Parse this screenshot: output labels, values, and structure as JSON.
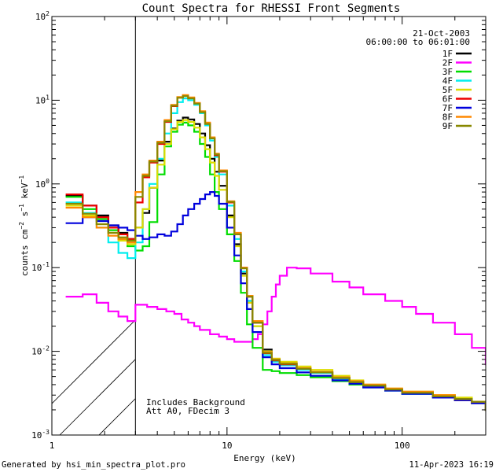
{
  "chart_data": {
    "type": "line",
    "title": "Count Spectra for RHESSI Front Segments",
    "xlabel": "Energy (keV)",
    "ylabel": "counts cm^-2 s^-1 keV^-1",
    "ylabel_parts": {
      "base": "counts cm",
      "exp1": "−2",
      "mid": " s",
      "exp2": "−1",
      "mid2": " keV",
      "exp3": "−1"
    },
    "xscale": "log",
    "yscale": "log",
    "xlim": [
      1,
      300
    ],
    "ylim": [
      0.001,
      100
    ],
    "x_ticks": [
      {
        "value": 1,
        "label": "1"
      },
      {
        "value": 10,
        "label": "10"
      },
      {
        "value": 100,
        "label": "100"
      }
    ],
    "y_ticks": [
      {
        "value": 0.001,
        "base": "10",
        "exp": "-3"
      },
      {
        "value": 0.01,
        "base": "10",
        "exp": "-2"
      },
      {
        "value": 0.1,
        "base": "10",
        "exp": "-1"
      },
      {
        "value": 1,
        "base": "10",
        "exp": "0"
      },
      {
        "value": 10,
        "base": "10",
        "exp": "1"
      },
      {
        "value": 100,
        "base": "10",
        "exp": "2"
      }
    ],
    "date": "21-Oct-2003",
    "time_range": "06:00:00 to 06:01:00",
    "hatched_region_kev": [
      1,
      3
    ],
    "annotations": [
      "Includes Background",
      "Att A0, FDecim 3"
    ],
    "legend_position": "top-right",
    "series": [
      {
        "name": "1F",
        "color": "#000000",
        "x": [
          1.2,
          1.5,
          1.8,
          2.1,
          2.4,
          2.7,
          3.0,
          3.3,
          3.6,
          4.0,
          4.4,
          4.8,
          5.2,
          5.6,
          6.0,
          6.5,
          7.0,
          7.5,
          8.0,
          8.5,
          9.0,
          10,
          11,
          12,
          13,
          14,
          16,
          18,
          20,
          25,
          30,
          40,
          50,
          60,
          80,
          100,
          150,
          200,
          250,
          300
        ],
        "y": [
          0.72,
          0.55,
          0.42,
          0.32,
          0.26,
          0.22,
          0.3,
          0.45,
          0.9,
          1.9,
          3.2,
          4.6,
          5.7,
          6.2,
          5.9,
          5.2,
          4.0,
          2.9,
          2.0,
          1.4,
          0.95,
          0.42,
          0.19,
          0.085,
          0.04,
          0.022,
          0.0105,
          0.008,
          0.0072,
          0.0062,
          0.0056,
          0.0048,
          0.0043,
          0.0039,
          0.0035,
          0.0032,
          0.0028,
          0.0026,
          0.0024,
          0.002
        ]
      },
      {
        "name": "2F",
        "color": "#ff00ff",
        "x": [
          1.2,
          1.5,
          1.8,
          2.1,
          2.4,
          2.7,
          3.0,
          3.5,
          4.0,
          4.5,
          5.0,
          5.5,
          6.0,
          6.5,
          7.0,
          8,
          9,
          10,
          11,
          12,
          13,
          14,
          15,
          16,
          17,
          18,
          19,
          20,
          22,
          25,
          30,
          40,
          50,
          60,
          80,
          100,
          120,
          150,
          200,
          250,
          300
        ],
        "y": [
          0.045,
          0.048,
          0.038,
          0.03,
          0.026,
          0.023,
          0.036,
          0.034,
          0.032,
          0.03,
          0.028,
          0.024,
          0.022,
          0.02,
          0.018,
          0.016,
          0.015,
          0.014,
          0.013,
          0.013,
          0.013,
          0.014,
          0.016,
          0.021,
          0.03,
          0.045,
          0.063,
          0.08,
          0.1,
          0.098,
          0.085,
          0.068,
          0.058,
          0.048,
          0.04,
          0.034,
          0.028,
          0.022,
          0.016,
          0.011,
          0.007
        ]
      },
      {
        "name": "3F",
        "color": "#00dd00",
        "x": [
          1.2,
          1.5,
          1.8,
          2.1,
          2.4,
          2.7,
          3.0,
          3.3,
          3.6,
          4.0,
          4.4,
          4.8,
          5.2,
          5.6,
          6.0,
          6.5,
          7.0,
          7.5,
          8.0,
          8.5,
          9.0,
          10,
          11,
          12,
          13,
          14,
          16,
          18,
          20,
          25,
          30,
          40,
          50,
          60,
          80,
          100,
          150,
          200,
          250,
          300
        ],
        "y": [
          0.7,
          0.5,
          0.38,
          0.28,
          0.22,
          0.18,
          0.16,
          0.18,
          0.35,
          1.3,
          2.8,
          4.2,
          5.1,
          5.4,
          5.0,
          4.2,
          3.0,
          2.1,
          1.3,
          0.8,
          0.5,
          0.25,
          0.12,
          0.05,
          0.021,
          0.011,
          0.006,
          0.0058,
          0.0055,
          0.0052,
          0.0049,
          0.0044,
          0.004,
          0.0037,
          0.0034,
          0.0031,
          0.0028,
          0.0026,
          0.0024,
          0.002
        ]
      },
      {
        "name": "4F",
        "color": "#00eeee",
        "x": [
          1.2,
          1.5,
          1.8,
          2.1,
          2.4,
          2.7,
          3.0,
          3.3,
          3.6,
          4.0,
          4.4,
          4.8,
          5.2,
          5.6,
          6.0,
          6.5,
          7.0,
          7.5,
          8.0,
          8.5,
          9.0,
          10,
          11,
          12,
          13,
          14,
          16,
          18,
          20,
          25,
          30,
          40,
          50,
          60,
          80,
          100,
          150,
          200,
          250,
          300
        ],
        "y": [
          0.6,
          0.45,
          0.3,
          0.2,
          0.15,
          0.13,
          0.2,
          0.5,
          1.0,
          2.0,
          4.0,
          7.0,
          9.5,
          10.5,
          10.0,
          8.8,
          7.0,
          5.0,
          3.3,
          2.1,
          1.3,
          0.55,
          0.22,
          0.09,
          0.04,
          0.02,
          0.009,
          0.0075,
          0.0068,
          0.006,
          0.0055,
          0.0047,
          0.0042,
          0.0038,
          0.0034,
          0.0031,
          0.0028,
          0.0026,
          0.0024,
          0.002
        ]
      },
      {
        "name": "5F",
        "color": "#dddd00",
        "x": [
          1.2,
          1.5,
          1.8,
          2.1,
          2.4,
          2.7,
          3.0,
          3.3,
          3.6,
          4.0,
          4.4,
          4.8,
          5.2,
          5.6,
          6.0,
          6.5,
          7.0,
          7.5,
          8.0,
          8.5,
          9.0,
          10,
          11,
          12,
          13,
          14,
          16,
          18,
          20,
          25,
          30,
          40,
          50,
          60,
          80,
          100,
          150,
          200,
          250,
          300
        ],
        "y": [
          0.55,
          0.42,
          0.33,
          0.26,
          0.21,
          0.19,
          0.3,
          0.5,
          0.9,
          1.7,
          3.0,
          4.5,
          5.5,
          5.8,
          5.5,
          4.7,
          3.6,
          2.6,
          1.8,
          1.25,
          0.85,
          0.4,
          0.18,
          0.08,
          0.038,
          0.02,
          0.01,
          0.0082,
          0.0075,
          0.0066,
          0.006,
          0.0051,
          0.0045,
          0.004,
          0.0036,
          0.0033,
          0.003,
          0.0028,
          0.0025,
          0.002
        ]
      },
      {
        "name": "6F",
        "color": "#ee0000",
        "x": [
          1.2,
          1.5,
          1.8,
          2.1,
          2.4,
          2.7,
          3.0,
          3.3,
          3.6,
          4.0,
          4.4,
          4.8,
          5.2,
          5.6,
          6.0,
          6.5,
          7.0,
          7.5,
          8.0,
          8.5,
          9.0,
          10,
          11,
          12,
          13,
          14,
          16,
          18,
          20,
          25,
          30,
          40,
          50,
          60,
          80,
          100,
          150,
          200,
          250,
          300
        ],
        "y": [
          0.75,
          0.55,
          0.4,
          0.3,
          0.25,
          0.22,
          0.6,
          1.2,
          1.8,
          3.0,
          5.5,
          8.5,
          10.8,
          11.3,
          10.6,
          9.2,
          7.3,
          5.3,
          3.5,
          2.2,
          1.4,
          0.6,
          0.25,
          0.1,
          0.045,
          0.022,
          0.0095,
          0.0078,
          0.007,
          0.0062,
          0.0056,
          0.0048,
          0.0043,
          0.0039,
          0.0035,
          0.0032,
          0.0029,
          0.0026,
          0.0024,
          0.002
        ]
      },
      {
        "name": "7F",
        "color": "#0000dd",
        "x": [
          1.2,
          1.5,
          1.8,
          2.1,
          2.4,
          2.7,
          3.0,
          3.3,
          3.6,
          4.0,
          4.4,
          4.8,
          5.2,
          5.6,
          6.0,
          6.5,
          7.0,
          7.5,
          8.0,
          8.5,
          9.0,
          10,
          11,
          12,
          13,
          14,
          16,
          18,
          20,
          25,
          30,
          40,
          50,
          60,
          80,
          100,
          150,
          200,
          250,
          300
        ],
        "y": [
          0.34,
          0.4,
          0.36,
          0.32,
          0.3,
          0.28,
          0.24,
          0.22,
          0.23,
          0.25,
          0.24,
          0.27,
          0.33,
          0.42,
          0.5,
          0.58,
          0.66,
          0.75,
          0.8,
          0.72,
          0.58,
          0.3,
          0.14,
          0.065,
          0.032,
          0.017,
          0.0085,
          0.007,
          0.0063,
          0.0056,
          0.0051,
          0.0045,
          0.0041,
          0.0037,
          0.0034,
          0.0031,
          0.0028,
          0.0026,
          0.0024,
          0.002
        ]
      },
      {
        "name": "8F",
        "color": "#ff8800",
        "x": [
          1.2,
          1.5,
          1.8,
          2.1,
          2.4,
          2.7,
          3.0,
          3.3,
          3.6,
          4.0,
          4.4,
          4.8,
          5.2,
          5.6,
          6.0,
          6.5,
          7.0,
          7.5,
          8.0,
          8.5,
          9.0,
          10,
          11,
          12,
          13,
          14,
          16,
          18,
          20,
          25,
          30,
          40,
          50,
          60,
          80,
          100,
          150,
          200,
          250,
          300
        ],
        "y": [
          0.52,
          0.4,
          0.3,
          0.24,
          0.22,
          0.2,
          0.8,
          1.3,
          1.9,
          3.2,
          5.8,
          8.8,
          10.9,
          11.5,
          10.8,
          9.3,
          7.4,
          5.4,
          3.6,
          2.3,
          1.45,
          0.62,
          0.26,
          0.1,
          0.046,
          0.023,
          0.0098,
          0.008,
          0.0072,
          0.0063,
          0.0057,
          0.0049,
          0.0044,
          0.004,
          0.0036,
          0.0033,
          0.003,
          0.0027,
          0.0025,
          0.002
        ]
      },
      {
        "name": "9F",
        "color": "#888800",
        "x": [
          1.2,
          1.5,
          1.8,
          2.1,
          2.4,
          2.7,
          3.0,
          3.3,
          3.6,
          4.0,
          4.4,
          4.8,
          5.2,
          5.6,
          6.0,
          6.5,
          7.0,
          7.5,
          8.0,
          8.5,
          9.0,
          10,
          11,
          12,
          13,
          14,
          16,
          18,
          20,
          25,
          30,
          40,
          50,
          60,
          80,
          100,
          150,
          200,
          250,
          300
        ],
        "y": [
          0.58,
          0.44,
          0.33,
          0.26,
          0.23,
          0.21,
          0.7,
          1.25,
          1.85,
          3.1,
          5.6,
          8.6,
          10.7,
          11.2,
          10.5,
          9.1,
          7.2,
          5.2,
          3.5,
          2.25,
          1.42,
          0.61,
          0.25,
          0.098,
          0.045,
          0.022,
          0.0096,
          0.0079,
          0.0071,
          0.0062,
          0.0056,
          0.0048,
          0.0043,
          0.0039,
          0.0035,
          0.0032,
          0.0029,
          0.0027,
          0.0025,
          0.002
        ]
      }
    ]
  },
  "footer": {
    "left": "Generated by hsi_min_spectra_plot.pro",
    "right": "11-Apr-2023 16:19"
  }
}
